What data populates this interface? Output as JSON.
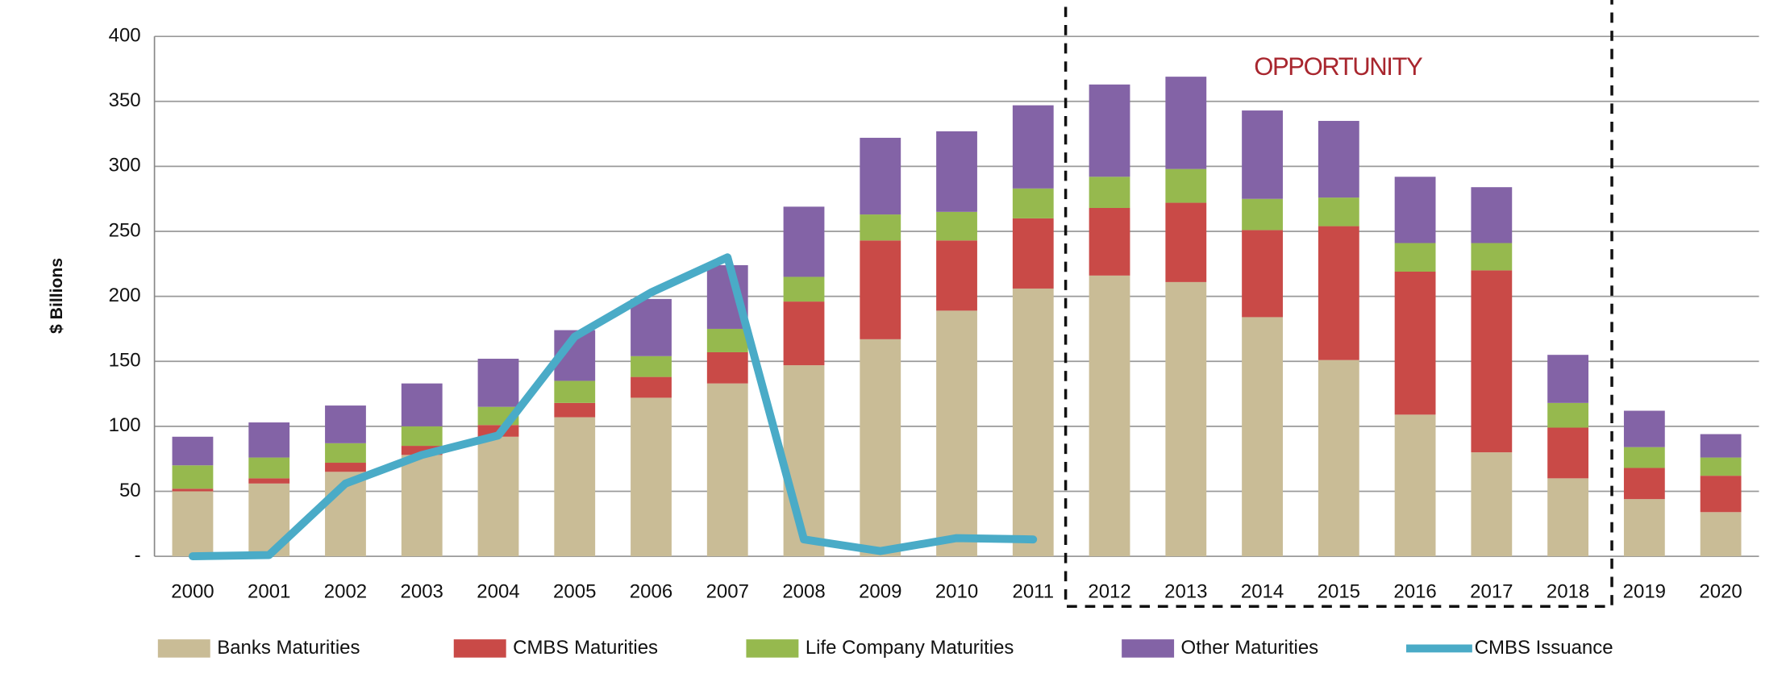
{
  "chart_data": {
    "type": "bar",
    "stacked": true,
    "ylabel": "$ Billions",
    "annotation": "OPPORTUNITY",
    "categories": [
      "2000",
      "2001",
      "2002",
      "2003",
      "2004",
      "2005",
      "2006",
      "2007",
      "2008",
      "2009",
      "2010",
      "2011",
      "2012",
      "2013",
      "2014",
      "2015",
      "2016",
      "2017",
      "2018",
      "2019",
      "2020"
    ],
    "series": [
      {
        "name": "Banks Maturities",
        "color": "#c9bc96",
        "values": [
          50,
          56,
          65,
          78,
          92,
          107,
          122,
          133,
          147,
          167,
          189,
          206,
          216,
          211,
          184,
          151,
          109,
          80,
          60,
          44,
          34
        ]
      },
      {
        "name": "CMBS Maturities",
        "color": "#c94a47",
        "values": [
          2,
          4,
          7,
          7,
          9,
          11,
          16,
          24,
          49,
          76,
          54,
          54,
          52,
          61,
          67,
          103,
          110,
          140,
          39,
          24,
          28
        ]
      },
      {
        "name": "Life Company Maturities",
        "color": "#96b94e",
        "values": [
          18,
          16,
          15,
          15,
          14,
          17,
          16,
          18,
          19,
          20,
          22,
          23,
          24,
          26,
          24,
          22,
          22,
          21,
          19,
          16,
          14
        ]
      },
      {
        "name": "Other Maturities",
        "color": "#8363a6",
        "values": [
          22,
          27,
          29,
          33,
          37,
          39,
          44,
          49,
          54,
          59,
          62,
          64,
          71,
          71,
          68,
          59,
          51,
          43,
          37,
          28,
          18
        ]
      },
      {
        "name": "CMBS Issuance",
        "type": "line",
        "color": "#4aabc7",
        "values": [
          0,
          1,
          56,
          78,
          93,
          169,
          203,
          230,
          13,
          4,
          14,
          13,
          null,
          null,
          null,
          null,
          null,
          null,
          null,
          null,
          null
        ]
      }
    ],
    "ylim": [
      0,
      400
    ],
    "yticks": [
      {
        "value": 0,
        "label": "-"
      },
      50,
      100,
      150,
      200,
      250,
      300,
      350,
      400
    ],
    "grid": true,
    "legend": "bottom"
  }
}
